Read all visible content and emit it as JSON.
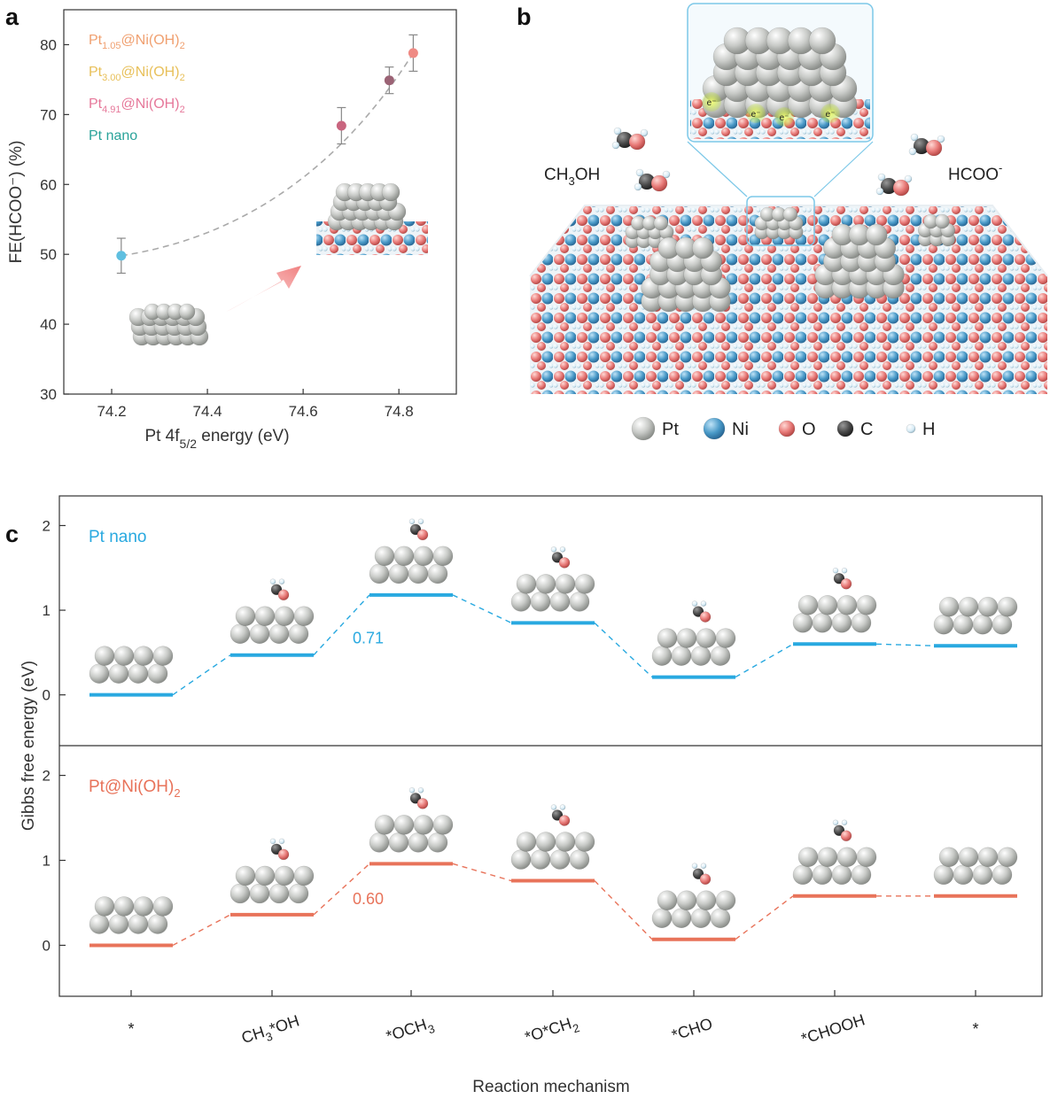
{
  "panel_labels": {
    "a": "a",
    "b": "b",
    "c": "c"
  },
  "chart_data": [
    {
      "type": "scatter",
      "panel": "a",
      "xlabel_main": "Pt 4f",
      "xlabel_sub": "5/2",
      "xlabel_tail": " energy (eV)",
      "ylabel": "FE(HCOO⁻) (%)",
      "xlim": [
        74.1,
        74.92
      ],
      "ylim": [
        30,
        85
      ],
      "xticks": [
        "74.2",
        "74.4",
        "74.6",
        "74.8"
      ],
      "yticks": [
        "30",
        "40",
        "50",
        "60",
        "70",
        "80"
      ],
      "legend": [
        {
          "main": "Pt",
          "sub": "1.05",
          "tail": "@Ni(OH)",
          "sub2": "2",
          "color": "#f0a070"
        },
        {
          "main": "Pt",
          "sub": "3.00",
          "tail": "@Ni(OH)",
          "sub2": "2",
          "color": "#e8c05a"
        },
        {
          "main": "Pt",
          "sub": "4.91",
          "tail": "@Ni(OH)",
          "sub2": "2",
          "color": "#e6789a"
        },
        {
          "main": "Pt nano",
          "sub": "",
          "tail": "",
          "sub2": "",
          "color": "#2aa39a"
        }
      ],
      "points": [
        {
          "x": 74.22,
          "y": 49.8,
          "err": 2.5,
          "color": "#5fbfe0"
        },
        {
          "x": 74.68,
          "y": 68.4,
          "err": 2.6,
          "color": "#c9657f"
        },
        {
          "x": 74.78,
          "y": 74.9,
          "err": 1.9,
          "color": "#9b6375"
        },
        {
          "x": 74.83,
          "y": 78.8,
          "err": 2.6,
          "color": "#ef8a84"
        }
      ],
      "grid": false,
      "legend_position": "top-left"
    },
    {
      "type": "line",
      "panel": "c",
      "ylabel": "Gibbs free energy (eV)",
      "xlabel": "Reaction mechanism",
      "categories": [
        "*",
        "CH3*OH",
        "*OCH3",
        "*O*CH2",
        "*CHO",
        "*CHOOH",
        "*"
      ],
      "category_labels": [
        {
          "main": "*",
          "sub": "",
          "tail": ""
        },
        {
          "main": "CH",
          "sub": "3",
          "tail": "*OH"
        },
        {
          "main": "*OCH",
          "sub": "3",
          "tail": ""
        },
        {
          "main": "*O*CH",
          "sub": "2",
          "tail": ""
        },
        {
          "main": "*CHO",
          "sub": "",
          "tail": ""
        },
        {
          "main": "*CHOOH",
          "sub": "",
          "tail": ""
        },
        {
          "main": "*",
          "sub": "",
          "tail": ""
        }
      ],
      "series": [
        {
          "name": "Pt nano",
          "name_sub": "",
          "color": "#29a9e0",
          "values": [
            0.0,
            0.47,
            1.18,
            0.85,
            0.21,
            0.6,
            0.58
          ],
          "ylim": [
            -0.6,
            2.35
          ],
          "yticks": [
            "0",
            "1",
            "2"
          ],
          "annotation": "0.71"
        },
        {
          "name": "Pt@Ni(OH)",
          "name_sub": "2",
          "color": "#e8735a",
          "values": [
            0.0,
            0.36,
            0.96,
            0.76,
            0.07,
            0.58,
            0.58
          ],
          "ylim": [
            -0.6,
            2.35
          ],
          "yticks": [
            "0",
            "1",
            "2"
          ],
          "annotation": "0.60"
        }
      ]
    }
  ],
  "panel_b": {
    "label_ch3oh_main": "CH",
    "label_ch3oh_sub": "3",
    "label_ch3oh_tail": "OH",
    "label_hcoo": "HCOO",
    "label_hcoo_sup": "-",
    "electron": "e⁻",
    "legend": [
      {
        "symbol": "Pt",
        "color": "#c8ccc8"
      },
      {
        "symbol": "Ni",
        "color": "#4a9ac8"
      },
      {
        "symbol": "O",
        "color": "#e87a78"
      },
      {
        "symbol": "C",
        "color": "#4a4a4a"
      },
      {
        "symbol": "H",
        "color": "#d8ecf6"
      }
    ]
  }
}
